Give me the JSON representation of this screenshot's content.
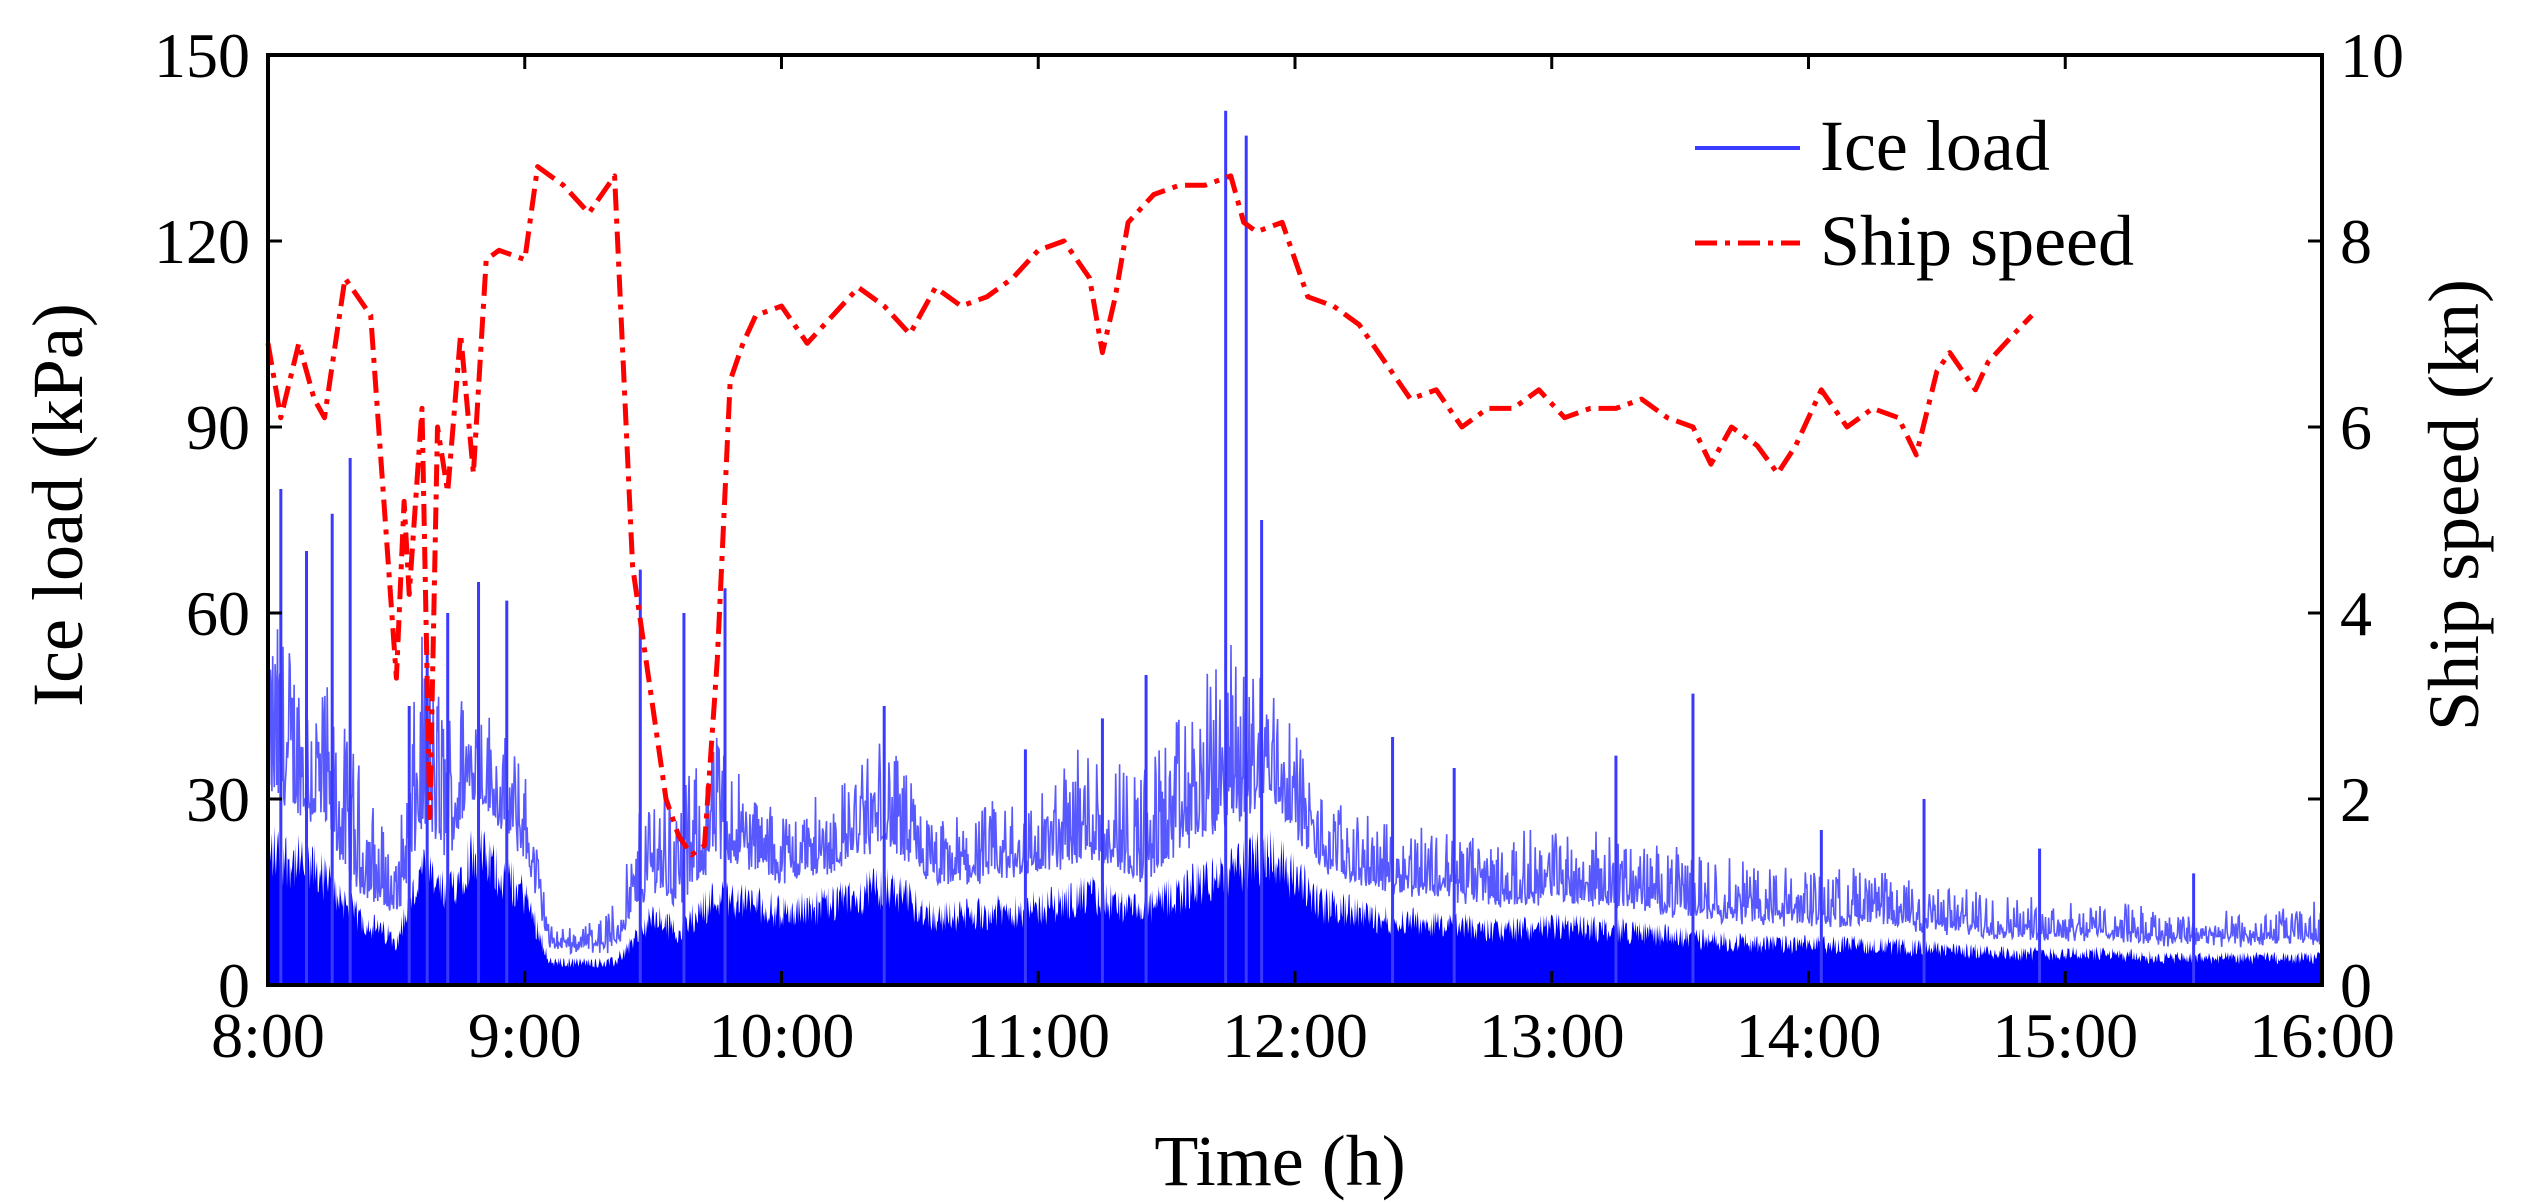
{
  "chart_data": {
    "type": "line",
    "title": "",
    "xlabel": "Time (h)",
    "ylabel_left": "Ice load (kPa)",
    "ylabel_right": "Ship speed (kn)",
    "x_ticks": [
      "8:00",
      "9:00",
      "10:00",
      "11:00",
      "12:00",
      "13:00",
      "14:00",
      "15:00",
      "16:00"
    ],
    "xlim": [
      8,
      16
    ],
    "ylim_left": [
      0,
      150
    ],
    "ylim_right": [
      0,
      10
    ],
    "y_ticks_left": [
      "0",
      "30",
      "60",
      "90",
      "120",
      "150"
    ],
    "y_ticks_right": [
      "0",
      "2",
      "4",
      "6",
      "8",
      "10"
    ],
    "grid": false,
    "legend_position": "top-right",
    "legend": [
      "Ice load",
      "Ship speed"
    ],
    "colors": {
      "ice_load": "#0000ff",
      "ship_speed": "#ff0000"
    },
    "series": [
      {
        "name": "Ice load",
        "axis": "left",
        "style": "solid",
        "envelope": {
          "x": [
            8.0,
            8.2,
            8.35,
            8.5,
            8.6,
            8.7,
            8.8,
            8.9,
            9.0,
            9.1,
            9.2,
            9.35,
            9.5,
            9.6,
            9.75,
            9.9,
            10.0,
            10.2,
            10.4,
            10.6,
            10.8,
            11.0,
            11.2,
            11.4,
            11.6,
            11.75,
            11.9,
            12.1,
            12.3,
            12.5,
            12.8,
            13.0,
            13.3,
            13.6,
            13.9,
            14.2,
            14.5,
            14.8,
            15.1,
            15.4,
            15.7,
            16.0
          ],
          "base": [
            30,
            25,
            15,
            10,
            25,
            20,
            30,
            25,
            20,
            5,
            5,
            5,
            15,
            12,
            20,
            18,
            16,
            18,
            22,
            15,
            16,
            17,
            20,
            16,
            22,
            25,
            30,
            18,
            15,
            14,
            12,
            13,
            12,
            10,
            9,
            9,
            8,
            7,
            7,
            6,
            6,
            6
          ],
          "peak": [
            60,
            50,
            35,
            20,
            55,
            45,
            50,
            40,
            35,
            8,
            8,
            12,
            35,
            30,
            40,
            30,
            28,
            30,
            40,
            25,
            28,
            30,
            40,
            35,
            45,
            55,
            50,
            30,
            25,
            25,
            22,
            25,
            22,
            20,
            18,
            18,
            15,
            13,
            12,
            11,
            10,
            12
          ]
        },
        "spikes": {
          "x": [
            8.05,
            8.15,
            8.25,
            8.32,
            8.55,
            8.62,
            8.7,
            8.82,
            8.93,
            9.45,
            9.62,
            9.78,
            10.4,
            10.95,
            11.25,
            11.42,
            11.73,
            11.81,
            11.87,
            12.38,
            12.62,
            13.25,
            13.55,
            14.05,
            14.45,
            14.9,
            15.5
          ],
          "y": [
            80,
            70,
            76,
            85,
            45,
            55,
            60,
            65,
            62,
            67,
            60,
            64,
            45,
            38,
            43,
            50,
            141,
            137,
            75,
            40,
            35,
            37,
            47,
            25,
            30,
            22,
            18
          ]
        }
      },
      {
        "name": "Ship speed",
        "axis": "right",
        "style": "dash-dot",
        "x": [
          8.0,
          8.05,
          8.12,
          8.18,
          8.22,
          8.3,
          8.4,
          8.5,
          8.53,
          8.55,
          8.6,
          8.63,
          8.66,
          8.7,
          8.75,
          8.8,
          8.85,
          8.9,
          9.0,
          9.05,
          9.15,
          9.25,
          9.35,
          9.42,
          9.55,
          9.6,
          9.65,
          9.7,
          9.75,
          9.8,
          9.85,
          9.9,
          10.0,
          10.1,
          10.2,
          10.3,
          10.4,
          10.5,
          10.6,
          10.7,
          10.8,
          10.9,
          11.0,
          11.1,
          11.2,
          11.25,
          11.3,
          11.35,
          11.45,
          11.55,
          11.65,
          11.75,
          11.8,
          11.85,
          11.95,
          12.05,
          12.15,
          12.25,
          12.35,
          12.45,
          12.55,
          12.65,
          12.75,
          12.85,
          12.95,
          13.05,
          13.15,
          13.25,
          13.35,
          13.45,
          13.55,
          13.62,
          13.7,
          13.8,
          13.88,
          13.95,
          14.05,
          14.15,
          14.25,
          14.35,
          14.42,
          14.5,
          14.55,
          14.65,
          14.7,
          14.8,
          14.87
        ],
        "y": [
          6.9,
          6.1,
          6.9,
          6.3,
          6.1,
          7.6,
          7.2,
          3.3,
          5.2,
          4.2,
          6.2,
          1.8,
          6.0,
          5.3,
          7.0,
          5.5,
          7.8,
          7.9,
          7.8,
          8.8,
          8.6,
          8.3,
          8.7,
          4.5,
          2.0,
          1.6,
          1.4,
          1.5,
          3.5,
          6.5,
          6.9,
          7.2,
          7.3,
          6.9,
          7.2,
          7.5,
          7.3,
          7.0,
          7.5,
          7.3,
          7.4,
          7.6,
          7.9,
          8.0,
          7.6,
          6.8,
          7.4,
          8.2,
          8.5,
          8.6,
          8.6,
          8.7,
          8.2,
          8.1,
          8.2,
          7.4,
          7.3,
          7.1,
          6.7,
          6.3,
          6.4,
          6.0,
          6.2,
          6.2,
          6.4,
          6.1,
          6.2,
          6.2,
          6.3,
          6.1,
          6.0,
          5.6,
          6.0,
          5.8,
          5.5,
          5.8,
          6.4,
          6.0,
          6.2,
          6.1,
          5.7,
          6.6,
          6.8,
          6.4,
          6.7,
          7.0,
          7.2
        ]
      }
    ]
  }
}
